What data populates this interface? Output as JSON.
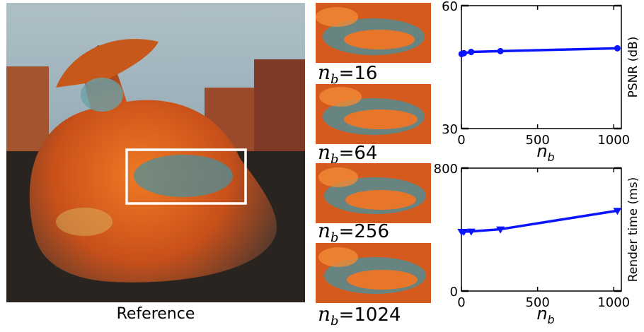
{
  "reference": {
    "caption": "Reference"
  },
  "crops": [
    {
      "symbol": "n",
      "subscript": "b",
      "value": "16"
    },
    {
      "symbol": "n",
      "subscript": "b",
      "value": "64"
    },
    {
      "symbol": "n",
      "subscript": "b",
      "value": "256"
    },
    {
      "symbol": "n",
      "subscript": "b",
      "value": "1024"
    }
  ],
  "colors": {
    "series": "#0a14ff",
    "highlight_box": "#ffffff",
    "sky": "#8ea7b7",
    "bunny_orange": "#e2631c",
    "bunny_teal": "#4c8f9a"
  },
  "chart_data": [
    {
      "type": "line",
      "title": "",
      "xlabel": "n_b",
      "ylabel": "PSNR (dB)",
      "xlim": [
        0,
        1050
      ],
      "ylim": [
        30,
        60
      ],
      "xticks": [
        0,
        500,
        1000
      ],
      "yticks": [
        30,
        60
      ],
      "marker": "circle",
      "grid": false,
      "series": [
        {
          "x": [
            1,
            16,
            64,
            256,
            1024
          ],
          "y": [
            48.2,
            48.4,
            48.7,
            48.9,
            49.6
          ]
        }
      ]
    },
    {
      "type": "line",
      "title": "",
      "xlabel": "n_b",
      "ylabel": "Render time (ms)",
      "xlim": [
        0,
        1050
      ],
      "ylim": [
        0,
        800
      ],
      "xticks": [
        0,
        500,
        1000
      ],
      "yticks": [
        0,
        800
      ],
      "marker": "triangle-down",
      "grid": false,
      "series": [
        {
          "x": [
            1,
            16,
            64,
            256,
            1024
          ],
          "y": [
            386,
            386,
            388,
            402,
            523
          ]
        }
      ]
    }
  ]
}
